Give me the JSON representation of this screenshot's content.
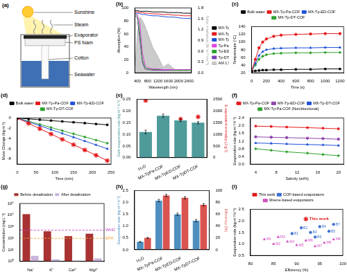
{
  "schematic": {
    "title": "(a)",
    "labels": [
      "Sunshine",
      "Steam",
      "Evaporator",
      "PS foam",
      "Cotton",
      "Seawater"
    ]
  },
  "chart_data": [
    {
      "type": "line",
      "title": "(b)",
      "x_label": "Wavelength (nm)",
      "y_label": "Absorption (%)",
      "y2_label": "Solar irradiance (W m⁻² nm⁻¹)",
      "x": [
        300,
        400,
        500,
        600,
        700,
        800,
        1000,
        1200,
        1400,
        1600,
        1800,
        2000,
        2200,
        2500
      ],
      "xlim": [
        300,
        2500
      ],
      "xticks": [
        400,
        800,
        1200,
        1600,
        2000,
        2400
      ],
      "ylim": [
        0,
        100
      ],
      "yticks": [
        0,
        20,
        40,
        60,
        80,
        100
      ],
      "y2lim": [
        0,
        1.8
      ],
      "y2ticks": [
        {
          "value": 0,
          "label": "0.0"
        },
        0.3,
        0.6,
        0.9,
        1.2,
        1.5,
        1.8
      ],
      "grid": false,
      "legend": "right",
      "series": [
        {
          "name": "MX-Tp-Pa-COF",
          "color": "#000000",
          "values": [
            96,
            96,
            95,
            95,
            95,
            95,
            94,
            94,
            94,
            93,
            93,
            93,
            92,
            92
          ]
        },
        {
          "name": "MX-Tp-ED-COF",
          "color": "#e41a1c",
          "values": [
            94,
            94,
            93,
            93,
            92,
            92,
            91,
            91,
            90,
            90,
            89,
            89,
            88,
            88
          ]
        },
        {
          "name": "MX-Tp-DT-COF",
          "color": "#1f4fd8",
          "values": [
            92,
            92,
            91,
            90,
            90,
            89,
            88,
            88,
            87,
            86,
            86,
            85,
            84,
            84
          ]
        },
        {
          "name": "Tp-Pa",
          "color": "#e040e0",
          "values": [
            92,
            90,
            75,
            30,
            12,
            8,
            6,
            6,
            5,
            5,
            5,
            5,
            5,
            5
          ]
        },
        {
          "name": "Tp-ED",
          "color": "#2ca02c",
          "values": [
            90,
            88,
            60,
            20,
            8,
            6,
            5,
            5,
            5,
            5,
            4,
            4,
            4,
            4
          ]
        },
        {
          "name": "Tp-DT",
          "color": "#7b3fb5",
          "values": [
            88,
            85,
            50,
            15,
            6,
            5,
            4,
            4,
            4,
            4,
            4,
            4,
            4,
            4
          ]
        },
        {
          "name": "AM 1.5G",
          "color": "#9e9e9e",
          "type": "area",
          "axis": "y2",
          "values": [
            0,
            1.1,
            1.55,
            1.45,
            1.3,
            1.1,
            0.7,
            0.45,
            0.15,
            0.25,
            0.12,
            0.05,
            0.08,
            0.02
          ]
        }
      ]
    },
    {
      "type": "line",
      "title": "(c)",
      "x_label": "Time (s)",
      "y_label": "Temperature (°C)",
      "x": [
        0,
        50,
        100,
        150,
        200,
        300,
        400,
        600,
        800,
        1000,
        1200
      ],
      "xlim": [
        0,
        1250
      ],
      "xticks": [
        0,
        200,
        400,
        600,
        800,
        1000,
        1200
      ],
      "ylim": [
        20,
        140
      ],
      "yticks": [
        20,
        40,
        60,
        80,
        100,
        120,
        140
      ],
      "grid": false,
      "legend": "top",
      "series": [
        {
          "name": "Bulk water",
          "color": "#000000",
          "marker": "square",
          "values": [
            24,
            25,
            26,
            27,
            27,
            28,
            28,
            29,
            29,
            30,
            30
          ]
        },
        {
          "name": "MX-Tp-Pa-COF",
          "color": "#e41a1c",
          "marker": "circle",
          "values": [
            25,
            55,
            85,
            100,
            108,
            115,
            118,
            120,
            121,
            122,
            122
          ]
        },
        {
          "name": "MX-Tp-ED-COF",
          "color": "#1f4fd8",
          "marker": "triangle",
          "values": [
            25,
            45,
            65,
            75,
            80,
            83,
            84,
            85,
            85,
            86,
            86
          ]
        },
        {
          "name": "MX-Tp-DT-COF",
          "color": "#2ca02c",
          "marker": "diamond",
          "values": [
            25,
            40,
            55,
            63,
            67,
            70,
            71,
            72,
            72,
            73,
            73
          ]
        }
      ]
    },
    {
      "type": "line",
      "title": "(d)",
      "x_label": "Time (min)",
      "y_label": "Mass Change (kg m⁻²)",
      "x": [
        0,
        30,
        60,
        90,
        120,
        150,
        180,
        210,
        240
      ],
      "xlim": [
        0,
        250
      ],
      "xticks": [
        0,
        50,
        100,
        150,
        200,
        250
      ],
      "ylim": [
        -9,
        0
      ],
      "yticks": [
        -8,
        -6,
        -4,
        -2,
        0
      ],
      "grid": false,
      "legend": "top",
      "series": [
        {
          "name": "Bulk water",
          "color": "#000000",
          "marker": "square",
          "values": [
            0,
            -0.17,
            -0.33,
            -0.5,
            -0.66,
            -0.83,
            -0.99,
            -1.16,
            -1.32
          ]
        },
        {
          "name": "MX-Tp-Pa-COF",
          "color": "#e41a1c",
          "marker": "star",
          "values": [
            0,
            -1.04,
            -2.08,
            -3.12,
            -4.16,
            -5.2,
            -6.24,
            -7.28,
            -8.32
          ]
        },
        {
          "name": "MX-Tp-ED-COF",
          "color": "#1f4fd8",
          "marker": "triangle",
          "values": [
            0,
            -0.75,
            -1.5,
            -2.25,
            -3,
            -3.75,
            -4.5,
            -5.25,
            -6
          ]
        },
        {
          "name": "MX-Tp-DT-COF",
          "color": "#2ca02c",
          "marker": "diamond",
          "values": [
            0,
            -0.62,
            -1.23,
            -1.85,
            -2.46,
            -3.08,
            -3.69,
            -4.31,
            -4.92
          ]
        }
      ]
    },
    {
      "type": "bar",
      "title": "(e)",
      "y_label": "Dark evaporation rate (kg m⁻² h⁻¹)",
      "y2_label": "E equivalent enthalpy (J g⁻¹)",
      "categories": [
        "H₂O",
        "MX-TpPa-COF",
        "MX-TpED-COF",
        "MX-TpDT-COF"
      ],
      "ylim": [
        0,
        0.25
      ],
      "yticks": [
        {
          "value": 0,
          "label": "0.00"
        },
        0.05,
        {
          "value": 0.1,
          "label": "0.10"
        },
        0.15,
        {
          "value": 0.2,
          "label": "0.20"
        },
        0.25
      ],
      "y2lim": [
        0,
        2500
      ],
      "y2ticks": [
        0,
        500,
        1000,
        1500,
        2000,
        2500
      ],
      "grid": false,
      "series": [
        {
          "name": "Dark evaporation rate",
          "color": "#4f9a9a",
          "type": "bar",
          "values": [
            0.11,
            0.18,
            0.16,
            0.15
          ],
          "errors": [
            0.008,
            0.007,
            0.006,
            0.005
          ]
        },
        {
          "name": "E equivalent enthalpy",
          "color": "#e41a1c",
          "type": "scatter",
          "marker": "star",
          "axis": "y2",
          "values": [
            2450,
            1500,
            1650,
            1750
          ]
        }
      ]
    },
    {
      "type": "line",
      "title": "(f)",
      "x_label": "Salinity (wt%)",
      "y_label": "Evaporation rate (kg m⁻² h⁻¹)",
      "x": [
        4,
        7,
        10,
        14,
        17,
        20
      ],
      "xlim": [
        3,
        21
      ],
      "xticks": [
        4,
        8,
        12,
        16,
        20
      ],
      "ylim": [
        0,
        2.4
      ],
      "yticks": [
        {
          "value": 0,
          "label": "0.0"
        },
        0.4,
        0.8,
        1.2,
        1.6,
        {
          "value": 2,
          "label": "2.0"
        },
        2.4
      ],
      "grid": false,
      "legend": "top",
      "series": [
        {
          "name": "MX-Tp-Pa-COF",
          "color": "#e41a1c",
          "marker": "square",
          "values": [
            1.98,
            1.96,
            1.93,
            1.9,
            1.87,
            1.84
          ]
        },
        {
          "name": "MX-Tp-ED-COF",
          "color": "#8e44ad",
          "marker": "circle",
          "values": [
            1.42,
            1.4,
            1.38,
            1.35,
            1.33,
            1.3
          ]
        },
        {
          "name": "MX-Tp-DT-COF",
          "color": "#1f4fd8",
          "marker": "triangle",
          "values": [
            1.1,
            1.08,
            1.05,
            1.02,
            1,
            0.97
          ]
        },
        {
          "name": "MX-Tp-Pa-COF (Nondirectional)",
          "color": "#2ca02c",
          "marker": "diamond",
          "values": [
            0.8,
            0.72,
            0.64,
            0.57,
            0.5,
            0.44
          ]
        }
      ]
    },
    {
      "type": "bar",
      "title": "(g)",
      "y_label": "Concentration (mg L⁻¹)",
      "categories": [
        "Na⁺",
        "K⁺",
        "Ca²⁺",
        "Mg²⁺"
      ],
      "log": "y",
      "ylim": [
        1,
        100000
      ],
      "yticks": [
        {
          "value": 1,
          "label": "10⁰"
        },
        {
          "value": 10,
          "label": "10¹"
        },
        {
          "value": 100,
          "label": "10²"
        },
        {
          "value": 1000,
          "label": "10³"
        },
        {
          "value": 10000,
          "label": "10⁴"
        },
        {
          "value": 100000,
          "label": "10⁵"
        }
      ],
      "grid": false,
      "legend": "top",
      "reference_lines": [
        {
          "name": "WHO",
          "value": 500,
          "color": "#c040c0",
          "line_style": "dashed"
        },
        {
          "name": "EPA",
          "value": 100,
          "color": "#f0a030",
          "line_style": "dashed"
        }
      ],
      "series": [
        {
          "name": "Before desalination",
          "color": "#a83232",
          "values": [
            12000,
            400,
            150,
            250
          ]
        },
        {
          "name": "After desalination",
          "color": "#c8b4dc",
          "values": [
            3,
            1.5,
            1.2,
            1.8
          ]
        }
      ]
    },
    {
      "type": "bar",
      "title": "(h)",
      "y_label": "Evaporation rate (kg m⁻² h⁻¹)",
      "y2_label": "Efficiency (%)",
      "categories": [
        "H₂O",
        "MX-TpPa-COF",
        "MX-TpED-COF",
        "MX-TpDT-COF"
      ],
      "ylim": [
        0,
        2.5
      ],
      "yticks": [
        {
          "value": 0,
          "label": "0.0"
        },
        0.5,
        {
          "value": 1,
          "label": "1.0"
        },
        1.5,
        {
          "value": 2,
          "label": "2.0"
        },
        2.5
      ],
      "y2lim": [
        0,
        100
      ],
      "y2ticks": [
        0,
        20,
        40,
        60,
        80,
        100
      ],
      "grid": false,
      "series": [
        {
          "name": "Evaporation rate",
          "color": "#4f8fc0",
          "values": [
            0.33,
            2.08,
            1.5,
            1.23
          ],
          "errors": [
            0.02,
            0.05,
            0.05,
            0.05
          ]
        },
        {
          "name": "Efficiency",
          "color": "#d9534f",
          "axis": "y2",
          "values": [
            20,
            92,
            88,
            76
          ],
          "errors": [
            1,
            2,
            2,
            2
          ]
        }
      ]
    },
    {
      "type": "scatter",
      "title": "(i)",
      "x_label": "Efficiency (%)",
      "y_label": "Evaporation rate (kg m⁻² h⁻¹)",
      "xlim": [
        80,
        100
      ],
      "xticks": [
        80,
        85,
        90,
        95,
        100
      ],
      "ylim": [
        0.5,
        2.5
      ],
      "yticks": [
        0.5,
        {
          "value": 1,
          "label": "1.0"
        },
        1.5,
        {
          "value": 2,
          "label": "2.0"
        },
        2.5
      ],
      "grid": false,
      "legend": "top",
      "series": [
        {
          "name": "This work",
          "color": "#e41a1c",
          "marker": "star",
          "x": [
            92
          ],
          "values": [
            2.08
          ],
          "point_labels": [
            "This work"
          ]
        },
        {
          "name": "COF-based evaporators",
          "color": "#3b6fd0",
          "marker": "circle",
          "x": [
            89,
            91,
            93,
            95,
            97,
            94,
            98
          ],
          "values": [
            1.45,
            1.7,
            1.5,
            1.75,
            1.55,
            1.3,
            1.85
          ],
          "point_labels": [
            "B1",
            "B2",
            "B3",
            "B4",
            "B5",
            "B6",
            "B7"
          ]
        },
        {
          "name": "Mxene-based evaporators",
          "color": "#d04fc0",
          "marker": "triangle",
          "x": [
            83,
            85,
            86,
            88,
            90,
            92,
            94,
            96,
            98
          ],
          "values": [
            1.2,
            1.0,
            1.3,
            1.1,
            0.95,
            1.15,
            0.9,
            1.05,
            1.2
          ],
          "point_labels": [
            "M1",
            "M2",
            "M3",
            "M4",
            "M5",
            "M6",
            "M7",
            "M8",
            "M9"
          ]
        }
      ]
    }
  ]
}
